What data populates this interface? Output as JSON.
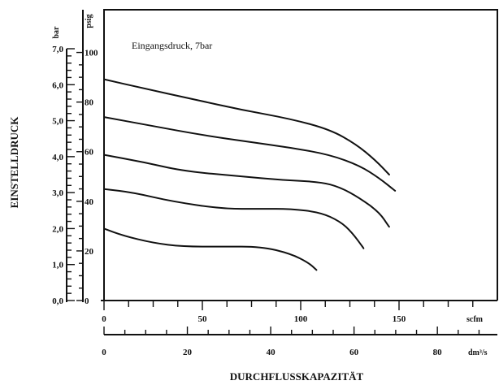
{
  "chart_data": {
    "type": "line",
    "annotation": "Eingangsdruck, 7bar",
    "ylabel": "EINSTELLDRUCK",
    "xlabel": "DURCHFLUSSKAPAZITÄT",
    "y_axis_bar": {
      "unit": "bar",
      "ticks": [
        "0,0",
        "1,0",
        "2,0",
        "3,0",
        "4,0",
        "5,0",
        "6,0",
        "7,0"
      ],
      "range": [
        0,
        7
      ]
    },
    "y_axis_psig": {
      "unit": "psig",
      "ticks": [
        "0",
        "20",
        "40",
        "60",
        "80",
        "100"
      ],
      "range": [
        0,
        101.5
      ]
    },
    "x_axis_scfm": {
      "unit": "scfm",
      "ticks": [
        "0",
        "50",
        "100",
        "150"
      ],
      "range": [
        0,
        200
      ]
    },
    "x_axis_dm3s": {
      "unit": "dm³/s",
      "ticks": [
        "0",
        "20",
        "40",
        "60",
        "80"
      ],
      "range": [
        0,
        94.4
      ]
    },
    "series": [
      {
        "points": [
          [
            0,
            2.0
          ],
          [
            10,
            1.8
          ],
          [
            25,
            1.6
          ],
          [
            40,
            1.5
          ],
          [
            60,
            1.5
          ],
          [
            80,
            1.5
          ],
          [
            95,
            1.3
          ],
          [
            104,
            1.05
          ],
          [
            108,
            0.85
          ]
        ]
      },
      {
        "points": [
          [
            0,
            3.1
          ],
          [
            15,
            3.0
          ],
          [
            35,
            2.75
          ],
          [
            60,
            2.55
          ],
          [
            80,
            2.55
          ],
          [
            95,
            2.55
          ],
          [
            110,
            2.45
          ],
          [
            120,
            2.2
          ],
          [
            126,
            1.9
          ],
          [
            132,
            1.45
          ]
        ]
      },
      {
        "points": [
          [
            0,
            4.05
          ],
          [
            20,
            3.85
          ],
          [
            40,
            3.6
          ],
          [
            70,
            3.45
          ],
          [
            90,
            3.35
          ],
          [
            110,
            3.3
          ],
          [
            120,
            3.15
          ],
          [
            130,
            2.85
          ],
          [
            140,
            2.45
          ],
          [
            145,
            2.05
          ]
        ]
      },
      {
        "points": [
          [
            0,
            5.1
          ],
          [
            25,
            4.85
          ],
          [
            50,
            4.6
          ],
          [
            75,
            4.4
          ],
          [
            95,
            4.25
          ],
          [
            115,
            4.05
          ],
          [
            130,
            3.75
          ],
          [
            140,
            3.4
          ],
          [
            148,
            3.05
          ]
        ]
      },
      {
        "points": [
          [
            0,
            6.15
          ],
          [
            20,
            5.9
          ],
          [
            45,
            5.6
          ],
          [
            70,
            5.3
          ],
          [
            95,
            5.05
          ],
          [
            115,
            4.75
          ],
          [
            128,
            4.35
          ],
          [
            138,
            3.9
          ],
          [
            145,
            3.5
          ]
        ]
      }
    ]
  }
}
